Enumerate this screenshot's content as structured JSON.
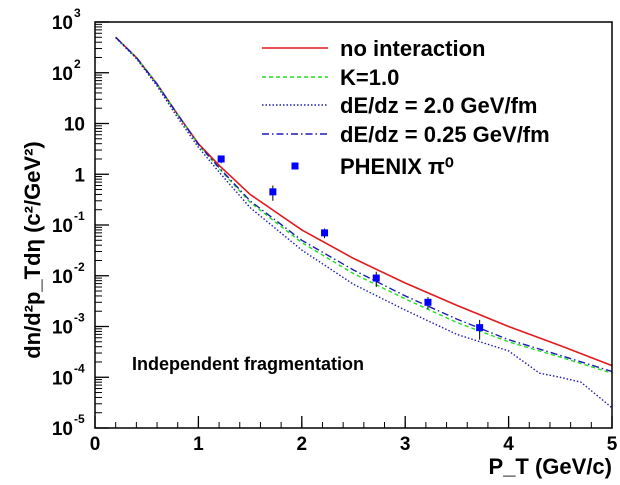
{
  "chart_data": {
    "type": "line",
    "xlabel": "P_T (GeV/c)",
    "ylabel": "dn/d²p_Tdη (c²/GeV²)",
    "xlim": [
      0,
      5
    ],
    "ylim": [
      1e-05,
      1000
    ],
    "yscale": "log",
    "x_ticks": [
      "0",
      "1",
      "2",
      "3",
      "4",
      "5"
    ],
    "y_ticks": [
      {
        "base": "10",
        "exp": "-5"
      },
      {
        "base": "10",
        "exp": "-4"
      },
      {
        "base": "10",
        "exp": "-3"
      },
      {
        "base": "10",
        "exp": "-2"
      },
      {
        "base": "10",
        "exp": "-1"
      },
      {
        "base": "1",
        "exp": ""
      },
      {
        "base": "10",
        "exp": ""
      },
      {
        "base": "10",
        "exp": "2"
      },
      {
        "base": "10",
        "exp": "3"
      }
    ],
    "annotation": "Independent fragmentation",
    "legend_position": "top-right",
    "series": [
      {
        "name": "no interaction",
        "color": "#e31a1c",
        "style": "solid",
        "x": [
          0.2,
          0.4,
          0.6,
          0.8,
          1.0,
          1.2,
          1.5,
          2.0,
          2.5,
          3.0,
          3.5,
          4.0,
          4.5,
          5.0
        ],
        "y": [
          500,
          200,
          60,
          15,
          4,
          1.5,
          0.4,
          0.08,
          0.022,
          0.0072,
          0.0026,
          0.001,
          0.00042,
          0.00017
        ]
      },
      {
        "name": "K=1.0",
        "color": "#22dd22",
        "style": "dashed",
        "x": [
          0.2,
          0.4,
          0.6,
          0.8,
          1.0,
          1.2,
          1.5,
          2.0,
          2.5,
          3.0,
          3.5,
          4.0,
          4.5,
          5.0
        ],
        "y": [
          500,
          200,
          60,
          15,
          3.8,
          1.3,
          0.28,
          0.045,
          0.011,
          0.0035,
          0.0012,
          0.0005,
          0.00025,
          0.00012
        ]
      },
      {
        "name": "dE/dz = 2.0 GeV/fm",
        "color": "#1c1cb4",
        "style": "dotted",
        "x": [
          0.2,
          0.4,
          0.6,
          0.8,
          1.0,
          1.2,
          1.5,
          2.0,
          2.5,
          3.0,
          3.5,
          4.0,
          4.3,
          4.5,
          4.7,
          5.0
        ],
        "y": [
          490,
          190,
          55,
          13,
          3.4,
          1.1,
          0.22,
          0.032,
          0.0068,
          0.0021,
          0.0007,
          0.00033,
          0.00012,
          0.0001,
          8e-05,
          2.5e-05
        ]
      },
      {
        "name": "dE/dz = 0.25 GeV/fm",
        "color": "#1c1cb4",
        "style": "dashdot",
        "x": [
          0.2,
          0.4,
          0.6,
          0.8,
          1.0,
          1.2,
          1.5,
          2.0,
          2.5,
          3.0,
          3.5,
          4.0,
          4.5,
          5.0
        ],
        "y": [
          500,
          200,
          60,
          15,
          3.9,
          1.35,
          0.3,
          0.05,
          0.013,
          0.004,
          0.0014,
          0.00055,
          0.00027,
          0.00013
        ]
      },
      {
        "name": "PHENIX π⁰",
        "color": "#0000ff",
        "style": "markers",
        "x": [
          1.22,
          1.72,
          2.22,
          2.72,
          3.22,
          3.72
        ],
        "y": [
          2.0,
          0.45,
          0.07,
          0.009,
          0.003,
          0.00095
        ],
        "yerr": [
          0.35,
          0.15,
          0.015,
          0.003,
          0.0008,
          0.0004
        ]
      }
    ]
  }
}
